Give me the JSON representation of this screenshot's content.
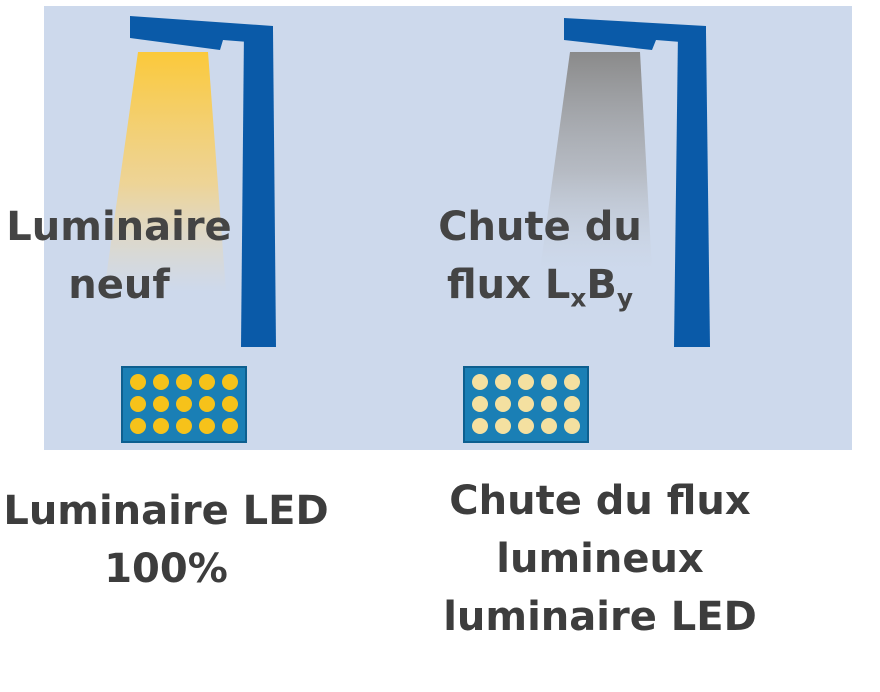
{
  "left": {
    "label_line1": "Luminaire",
    "label_line2": "neuf",
    "caption_line1": "Luminaire LED",
    "caption_line2": "100%"
  },
  "right": {
    "label_line1": "Chute du",
    "label_flux": "flux L",
    "label_sub_x": "x",
    "label_B": "B",
    "label_sub_y": "y",
    "caption_line1": "Chute du flux",
    "caption_line2": "lumineux",
    "caption_line3": "luminaire LED"
  },
  "colors": {
    "panel_background": "#cdd9ec",
    "pole": "#0a5aa8",
    "led_board": "#1a7fb5",
    "led_bright": "#f6c21a",
    "led_dim": "#f4e0a0",
    "beam_new": "#f9c93a",
    "beam_degraded": "#8f8f8f"
  },
  "icons": [
    "street-lamp-new",
    "street-lamp-degraded",
    "led-module-bright",
    "led-module-dim"
  ]
}
